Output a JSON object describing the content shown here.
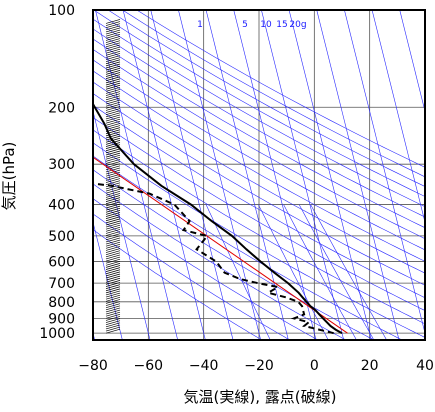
{
  "chart_data": {
    "type": "line",
    "subtype": "skew-t-log-p",
    "xlabel": "気温(実線), 露点(破線)",
    "ylabel": "気圧(hPa)",
    "xlim": [
      -80,
      40
    ],
    "ylim": [
      1050,
      100
    ],
    "y_scale": "log",
    "x_ticks": [
      "−80",
      "−60",
      "−40",
      "−20",
      "0",
      "20",
      "40"
    ],
    "x_tick_values": [
      -80,
      -60,
      -40,
      -20,
      0,
      20,
      40
    ],
    "y_ticks": [
      "100",
      "200",
      "300",
      "400",
      "500",
      "600",
      "700",
      "800",
      "900",
      "1000"
    ],
    "y_tick_values": [
      100,
      200,
      300,
      400,
      500,
      600,
      700,
      800,
      900,
      1000
    ],
    "mixing_ratio_labels": [
      "1",
      "5",
      "10",
      "15",
      "20g"
    ],
    "colors": {
      "temperature": "#000000",
      "dewpoint": "#000000",
      "parcel": "#e00000",
      "reference_lines": "#2b2bff",
      "grid": "#555555",
      "wind_barbs": "#000000"
    },
    "series": [
      {
        "name": "気温",
        "style": "solid",
        "points": [
          [
            1000,
            10
          ],
          [
            975,
            8
          ],
          [
            950,
            6.5
          ],
          [
            925,
            5.5
          ],
          [
            900,
            4.5
          ],
          [
            875,
            3.5
          ],
          [
            850,
            2.5
          ],
          [
            825,
            1
          ],
          [
            800,
            0
          ],
          [
            775,
            -1
          ],
          [
            750,
            -2
          ],
          [
            700,
            -5
          ],
          [
            650,
            -9
          ],
          [
            600,
            -13
          ],
          [
            550,
            -17
          ],
          [
            500,
            -21
          ],
          [
            450,
            -27
          ],
          [
            400,
            -33
          ],
          [
            350,
            -42
          ],
          [
            300,
            -50
          ],
          [
            250,
            -56
          ],
          [
            225,
            -57
          ],
          [
            200,
            -59
          ],
          [
            175,
            -61
          ],
          [
            150,
            -60
          ],
          [
            125,
            -62
          ],
          [
            110,
            -62
          ],
          [
            100,
            -62
          ]
        ]
      },
      {
        "name": "露点",
        "style": "dashed",
        "points": [
          [
            1000,
            7
          ],
          [
            975,
            2
          ],
          [
            950,
            -3
          ],
          [
            925,
            -1
          ],
          [
            900,
            -6
          ],
          [
            875,
            -2
          ],
          [
            850,
            -2
          ],
          [
            825,
            -2
          ],
          [
            800,
            -3
          ],
          [
            775,
            -7
          ],
          [
            750,
            -13
          ],
          [
            720,
            -9
          ],
          [
            700,
            -16
          ],
          [
            680,
            -22
          ],
          [
            650,
            -27
          ],
          [
            600,
            -29
          ],
          [
            550,
            -35
          ],
          [
            520,
            -32
          ],
          [
            500,
            -30
          ],
          [
            480,
            -38
          ],
          [
            450,
            -35
          ],
          [
            400,
            -39
          ],
          [
            370,
            -47
          ],
          [
            350,
            -60
          ],
          [
            340,
            -72
          ]
        ]
      }
    ],
    "parcel_path_endpoints": [
      [
        1000,
        12
      ],
      [
        220,
        -80
      ]
    ]
  }
}
